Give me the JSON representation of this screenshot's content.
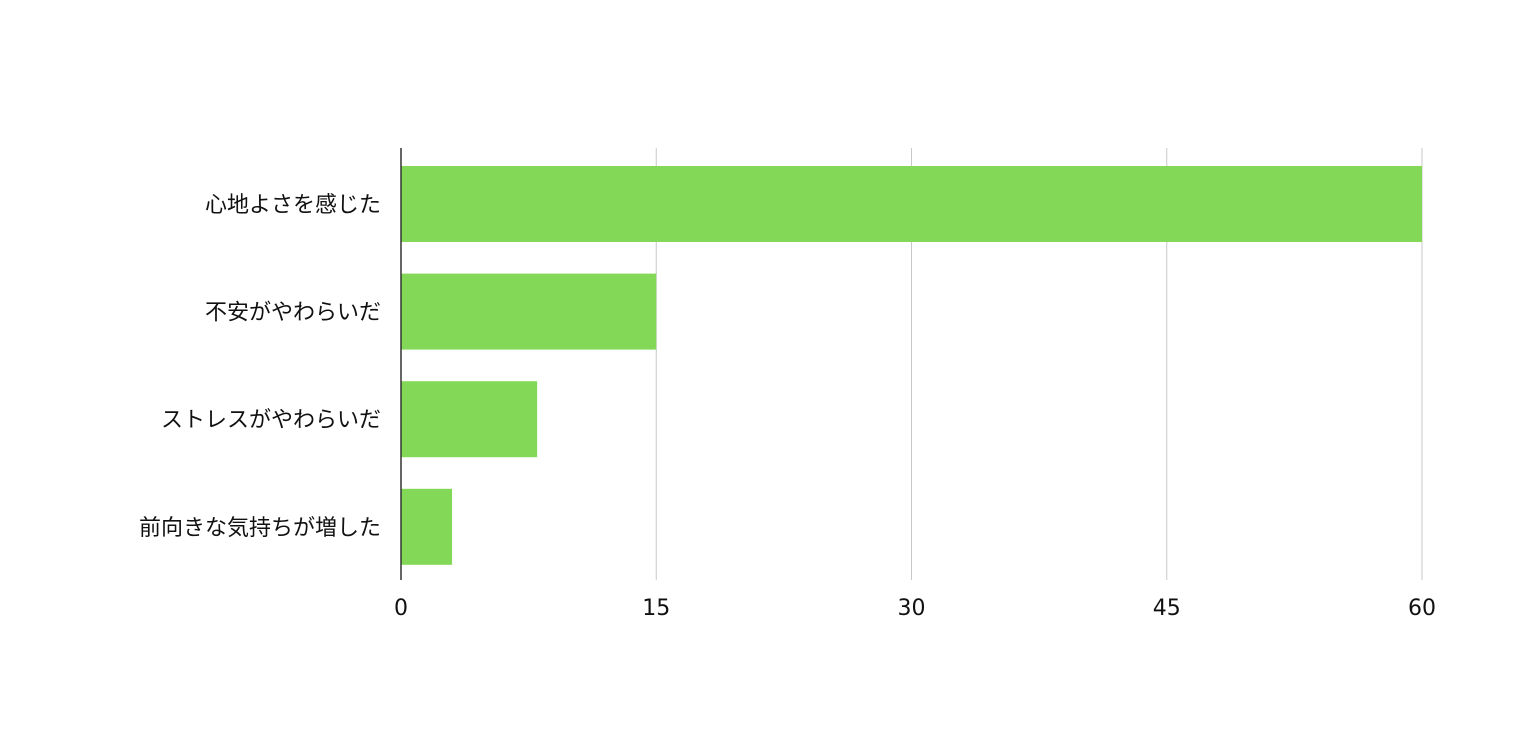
{
  "chart_data": {
    "type": "bar",
    "orientation": "horizontal",
    "categories": [
      "心地よさを感じた",
      "不安がやわらいだ",
      "ストレスがやわらいだ",
      "前向きな気持ちが増した"
    ],
    "values": [
      60,
      15,
      8,
      3
    ],
    "xlim": [
      0,
      60
    ],
    "x_ticks": [
      "0",
      "15",
      "30",
      "45",
      "60"
    ],
    "grid": "vertical",
    "bar_color": "#84d857",
    "grid_color": "#c8c8c8",
    "axis_color": "#333333"
  }
}
